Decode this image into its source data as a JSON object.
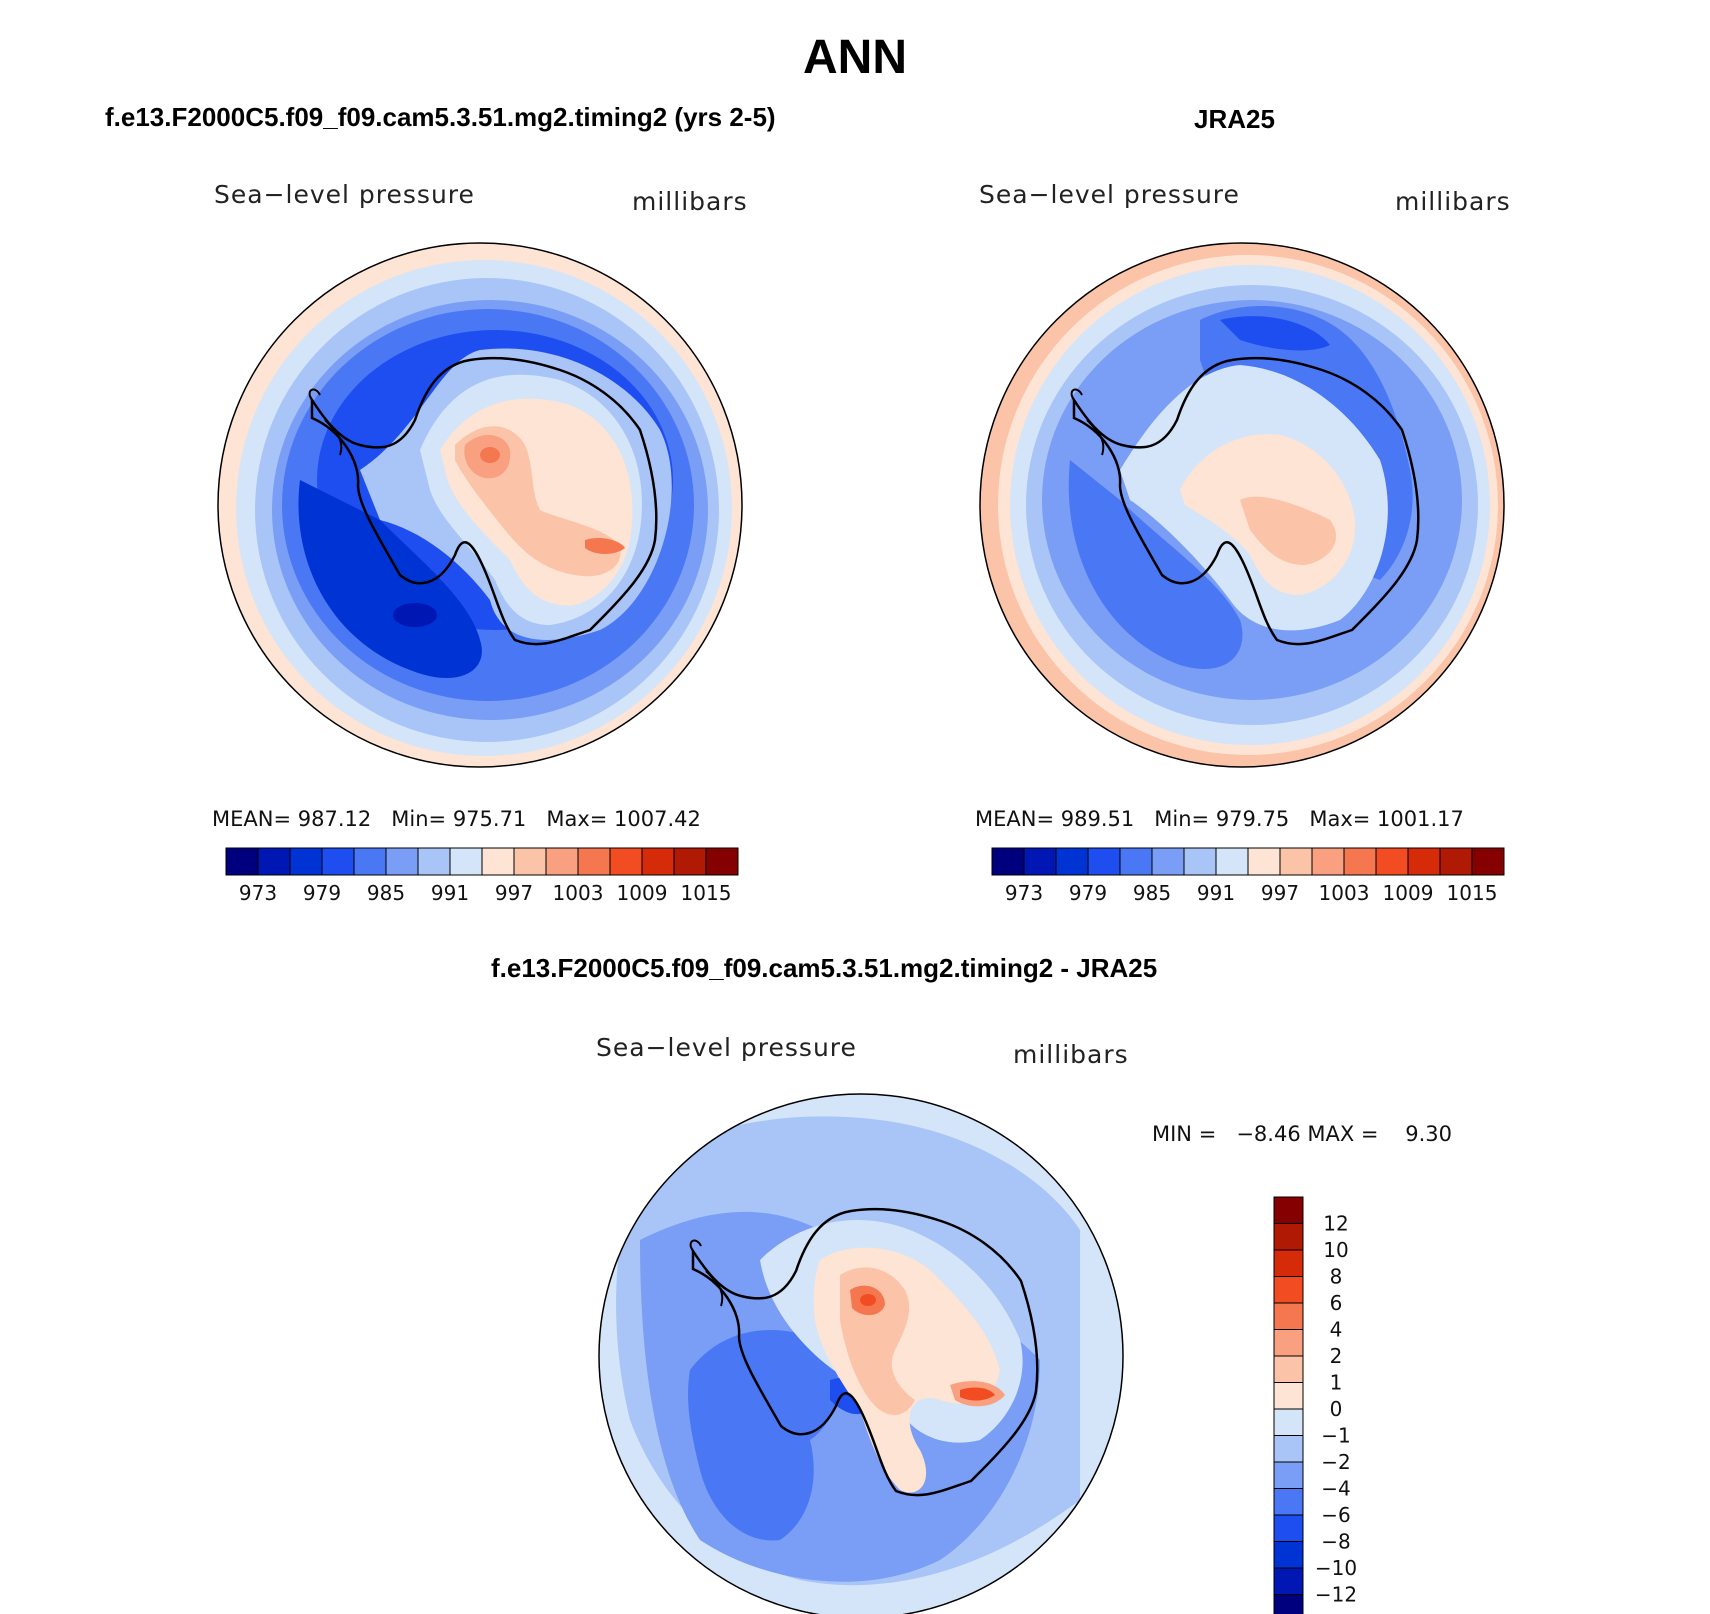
{
  "title": "ANN",
  "panels": [
    {
      "case": "f.e13.F2000C5.f09_f09.cam5.3.51.mg2.timing2 (yrs 2-5)",
      "variable": "Sea−level pressure",
      "units": "millibars",
      "stats": {
        "mean_label": "MEAN=",
        "mean": "987.12",
        "min_label": "Min=",
        "min": "975.71",
        "max_label": "Max=",
        "max": "1007.42"
      }
    },
    {
      "case": "JRA25",
      "variable": "Sea−level pressure",
      "units": "millibars",
      "stats": {
        "mean_label": "MEAN=",
        "mean": "989.51",
        "min_label": "Min=",
        "min": "979.75",
        "max_label": "Max=",
        "max": "1001.17"
      }
    },
    {
      "case": "f.e13.F2000C5.f09_f09.cam5.3.51.mg2.timing2 - JRA25",
      "variable": "Sea−level pressure",
      "units": "millibars",
      "stats": {
        "min_label": "MIN =",
        "min": "−8.46",
        "max_label": "MAX =",
        "max": "9.30"
      }
    }
  ],
  "colorbar_abs": {
    "colors": [
      "#00007f",
      "#0017b3",
      "#0033d4",
      "#1f4ef0",
      "#4a78f5",
      "#7a9ef5",
      "#a9c4f7",
      "#d4e5f9",
      "#fde4d4",
      "#fbc3a8",
      "#f8a07f",
      "#f57750",
      "#f24d22",
      "#d62b08",
      "#b01a04",
      "#850000"
    ],
    "tick_labels": [
      "973",
      "979",
      "985",
      "991",
      "997",
      "1003",
      "1009",
      "1015"
    ]
  },
  "colorbar_diff": {
    "colors": [
      "#850000",
      "#b01a04",
      "#d62b08",
      "#f24d22",
      "#f57750",
      "#f8a07f",
      "#fbc3a8",
      "#fde4d4",
      "#d4e5f9",
      "#a9c4f7",
      "#7a9ef5",
      "#4a78f5",
      "#1f4ef0",
      "#0033d4",
      "#0017b3",
      "#00007f"
    ],
    "tick_labels": [
      "12",
      "10",
      "8",
      "6",
      "4",
      "2",
      "1",
      "0",
      "−1",
      "−2",
      "−4",
      "−6",
      "−8",
      "−10",
      "−12"
    ]
  }
}
